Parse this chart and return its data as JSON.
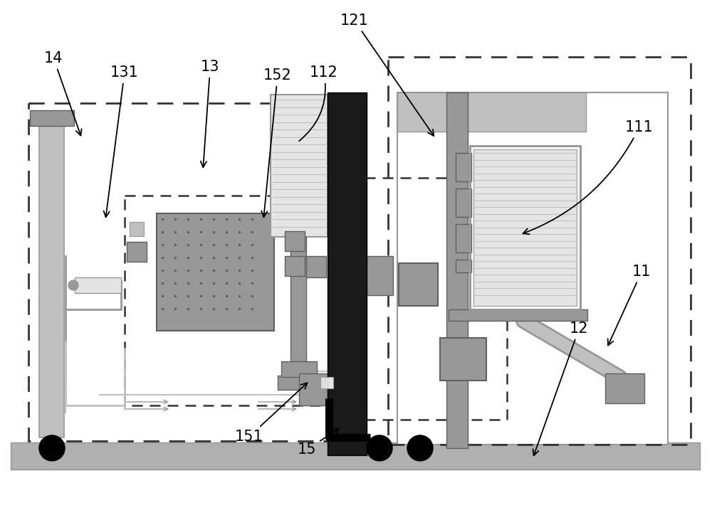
{
  "bg_color": "#ffffff",
  "light_gray": "#c0c0c0",
  "mid_gray": "#989898",
  "dark_gray": "#606060",
  "very_light_gray": "#e4e4e4",
  "black": "#000000",
  "floor_color": "#b0b0b0",
  "wall_black": "#1a1a1a",
  "fig_w": 10.0,
  "fig_h": 7.1
}
